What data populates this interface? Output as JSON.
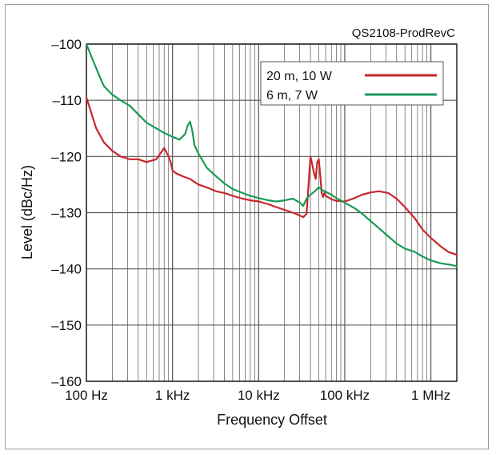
{
  "chart_data": {
    "type": "line",
    "title": "",
    "annotation": "QS2108-ProdRevC",
    "xlabel": "Frequency Offset",
    "ylabel": "Level (dBc/Hz)",
    "xscale": "log",
    "xlim": [
      100,
      2000000
    ],
    "ylim": [
      -160,
      -100
    ],
    "x_ticks": [
      {
        "value": 100,
        "label": "100 Hz"
      },
      {
        "value": 1000,
        "label": "1 kHz"
      },
      {
        "value": 10000,
        "label": "10 kHz"
      },
      {
        "value": 100000,
        "label": "100 kHz"
      },
      {
        "value": 1000000,
        "label": "1 MHz"
      }
    ],
    "y_ticks": [
      {
        "value": -100,
        "label": "–100"
      },
      {
        "value": -110,
        "label": "–110"
      },
      {
        "value": -120,
        "label": "–120"
      },
      {
        "value": -130,
        "label": "–130"
      },
      {
        "value": -140,
        "label": "–140"
      },
      {
        "value": -150,
        "label": "–150"
      },
      {
        "value": -160,
        "label": "–160"
      }
    ],
    "grid": true,
    "legend_position": "top-right",
    "series": [
      {
        "name": "20 m, 10 W",
        "color": "#c8262b",
        "x": [
          100,
          130,
          160,
          200,
          250,
          320,
          400,
          500,
          650,
          800,
          900,
          950,
          1000,
          1100,
          1300,
          1600,
          2000,
          2500,
          3200,
          4000,
          5000,
          6500,
          8000,
          10000,
          13000,
          16000,
          20000,
          25000,
          30000,
          33000,
          36000,
          38000,
          40000,
          42000,
          44000,
          46000,
          48000,
          50000,
          52000,
          54000,
          56000,
          58000,
          60000,
          65000,
          70000,
          80000,
          100000,
          130000,
          160000,
          200000,
          250000,
          320000,
          400000,
          500000,
          650000,
          800000,
          1000000,
          1300000,
          1600000,
          2000000
        ],
        "values": [
          -109.5,
          -115,
          -117.5,
          -119,
          -120,
          -120.5,
          -120.5,
          -121,
          -120.5,
          -118.5,
          -120,
          -121,
          -122.5,
          -123,
          -123.5,
          -124,
          -125,
          -125.5,
          -126.2,
          -126.5,
          -127,
          -127.5,
          -127.8,
          -128,
          -128.5,
          -129,
          -129.5,
          -130,
          -130.5,
          -130.8,
          -130.2,
          -125,
          -120,
          -121.5,
          -123,
          -124,
          -121,
          -120.5,
          -123.5,
          -126.5,
          -127.2,
          -126.5,
          -127,
          -127.3,
          -127.6,
          -127.9,
          -128,
          -127.4,
          -126.8,
          -126.4,
          -126.2,
          -126.5,
          -127.5,
          -129,
          -131,
          -133,
          -134.5,
          -136,
          -137,
          -137.5
        ]
      },
      {
        "name": "6 m, 7 W",
        "color": "#1a9a55",
        "x": [
          100,
          120,
          140,
          160,
          200,
          250,
          320,
          400,
          500,
          650,
          800,
          1000,
          1200,
          1400,
          1500,
          1600,
          1700,
          1800,
          2000,
          2500,
          3200,
          4000,
          5000,
          6500,
          8000,
          10000,
          13000,
          16000,
          20000,
          25000,
          30000,
          33000,
          36000,
          40000,
          45000,
          50000,
          55000,
          60000,
          70000,
          80000,
          100000,
          130000,
          160000,
          200000,
          250000,
          320000,
          400000,
          500000,
          650000,
          800000,
          1000000,
          1300000,
          1600000,
          2000000
        ],
        "values": [
          -100,
          -103,
          -105.5,
          -107.5,
          -109,
          -110,
          -111,
          -112.5,
          -114,
          -115,
          -115.8,
          -116.5,
          -117,
          -116,
          -114.5,
          -113.8,
          -115.5,
          -118,
          -119.5,
          -122,
          -123.5,
          -124.8,
          -125.8,
          -126.5,
          -127,
          -127.4,
          -127.8,
          -128,
          -127.8,
          -127.5,
          -128.2,
          -128.8,
          -127.5,
          -126.8,
          -126.2,
          -125.5,
          -126,
          -126.3,
          -126.8,
          -127.4,
          -128.2,
          -129.2,
          -130.2,
          -131.5,
          -132.8,
          -134.2,
          -135.5,
          -136.4,
          -137,
          -137.8,
          -138.5,
          -139,
          -139.2,
          -139.5
        ]
      }
    ]
  }
}
